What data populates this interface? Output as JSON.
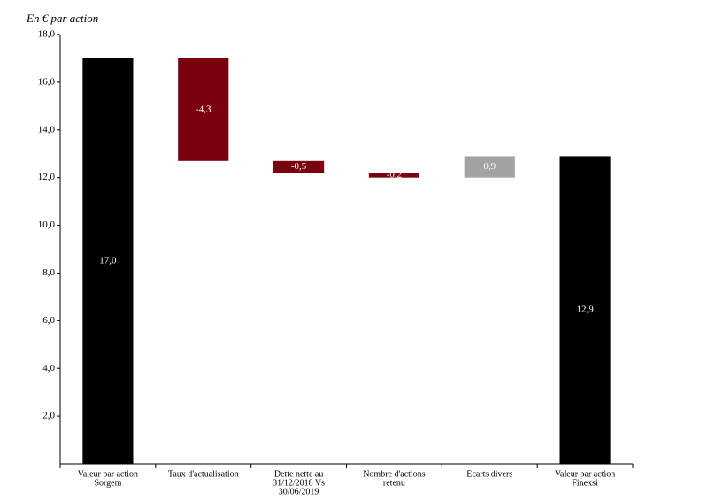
{
  "chart_data": {
    "type": "waterfall",
    "title": "En € par action",
    "categories": [
      [
        "Valeur par action",
        "Sorgem"
      ],
      [
        "Taux d'actualisation"
      ],
      [
        "Dette nette au",
        "31/12/2018  Vs",
        "30/06/2019"
      ],
      [
        "Nombre d'actions",
        "retenu"
      ],
      [
        "Ecarts divers"
      ],
      [
        "Valeur par action",
        "Finexsi"
      ]
    ],
    "values": [
      17.0,
      -4.3,
      -0.5,
      -0.2,
      0.9,
      12.9
    ],
    "value_labels": [
      "17,0",
      "-4,3",
      "-0,5",
      "-0,2",
      "0,9",
      "12,9"
    ],
    "is_total": [
      true,
      false,
      false,
      false,
      false,
      true
    ],
    "colors": [
      "#000000",
      "#7a0010",
      "#7a0010",
      "#7a0010",
      "#a3a3a3",
      "#000000"
    ],
    "ylim": [
      0,
      18
    ],
    "yticks": [
      {
        "value": 2,
        "label": "2,0"
      },
      {
        "value": 4,
        "label": "4,0"
      },
      {
        "value": 6,
        "label": "6,0"
      },
      {
        "value": 8,
        "label": "8,0"
      },
      {
        "value": 10,
        "label": "10,0"
      },
      {
        "value": 12,
        "label": "12,0"
      },
      {
        "value": 14,
        "label": "14,0"
      },
      {
        "value": 16,
        "label": "16,0"
      },
      {
        "value": 18,
        "label": "18,0"
      }
    ],
    "grid": false
  }
}
